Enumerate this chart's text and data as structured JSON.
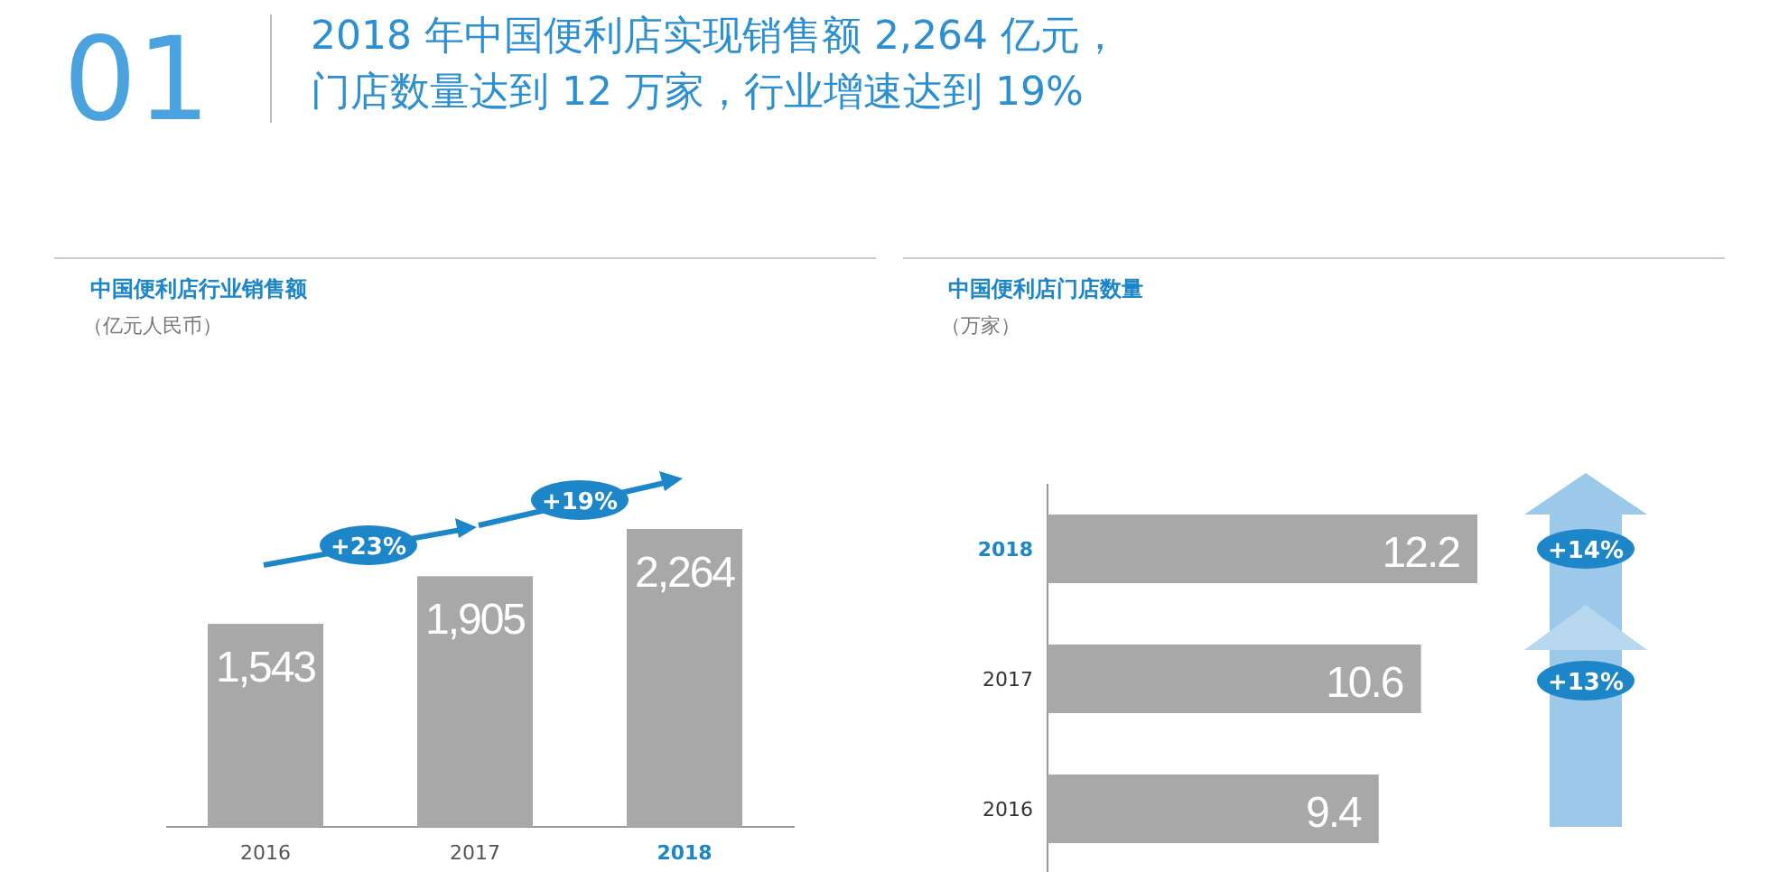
{
  "chart_data": [
    {
      "type": "bar",
      "title": "中国便利店行业销售额",
      "subtitle": "（亿元人民币）",
      "categories": [
        "2016",
        "2017",
        "2018"
      ],
      "values": [
        1543,
        1905,
        2264
      ],
      "color": "#a8a8a8",
      "data_labels": true,
      "value_labels": [
        "1,543",
        "1,905",
        "2,264"
      ],
      "annotations": [
        "01",
        "2018 年中国便利店实现销售额 2,264 亿元，",
        "门店数量达到 12 万家，行业增速达到 19%",
        "+23%",
        "+19%"
      ]
    },
    {
      "type": "bar",
      "orientation": "horizontal",
      "title": "中国便利店门店数量",
      "subtitle": "（万家）",
      "categories": [
        "2018",
        "2017",
        "2016"
      ],
      "values": [
        12.2,
        10.6,
        9.4
      ],
      "color": "#a8a8a8",
      "data_labels": true,
      "annotations": [
        "+14%",
        "+13%"
      ]
    }
  ]
}
